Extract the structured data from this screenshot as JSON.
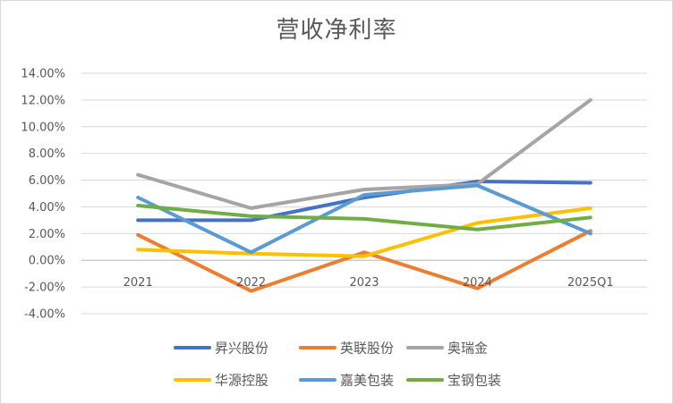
{
  "chart_data": {
    "type": "line",
    "title": "营收净利率",
    "xlabel": "",
    "ylabel": "",
    "categories": [
      "2021",
      "2022",
      "2023",
      "2024",
      "2025Q1"
    ],
    "y_ticks": [
      "14.00%",
      "12.00%",
      "10.00%",
      "8.00%",
      "6.00%",
      "4.00%",
      "2.00%",
      "0.00%",
      "-2.00%",
      "-4.00%"
    ],
    "ylim": [
      -4,
      14
    ],
    "y_unit": "%",
    "grid": true,
    "legend_position": "bottom",
    "series": [
      {
        "name": "昇兴股份",
        "color": "#4472C4",
        "values": [
          3.0,
          3.0,
          4.7,
          5.9,
          5.8
        ]
      },
      {
        "name": "英联股份",
        "color": "#ED7D31",
        "values": [
          1.9,
          -2.3,
          0.6,
          -2.1,
          2.2
        ]
      },
      {
        "name": "奥瑞金",
        "color": "#A5A5A5",
        "values": [
          6.4,
          3.9,
          5.3,
          5.7,
          12.0
        ]
      },
      {
        "name": "华源控股",
        "color": "#FFC000",
        "values": [
          0.8,
          0.5,
          0.3,
          2.8,
          3.9
        ]
      },
      {
        "name": "嘉美包装",
        "color": "#5B9BD5",
        "values": [
          4.7,
          0.6,
          4.9,
          5.6,
          2.0
        ]
      },
      {
        "name": "宝钢包装",
        "color": "#70AD47",
        "values": [
          4.1,
          3.3,
          3.1,
          2.3,
          3.2
        ]
      }
    ]
  }
}
